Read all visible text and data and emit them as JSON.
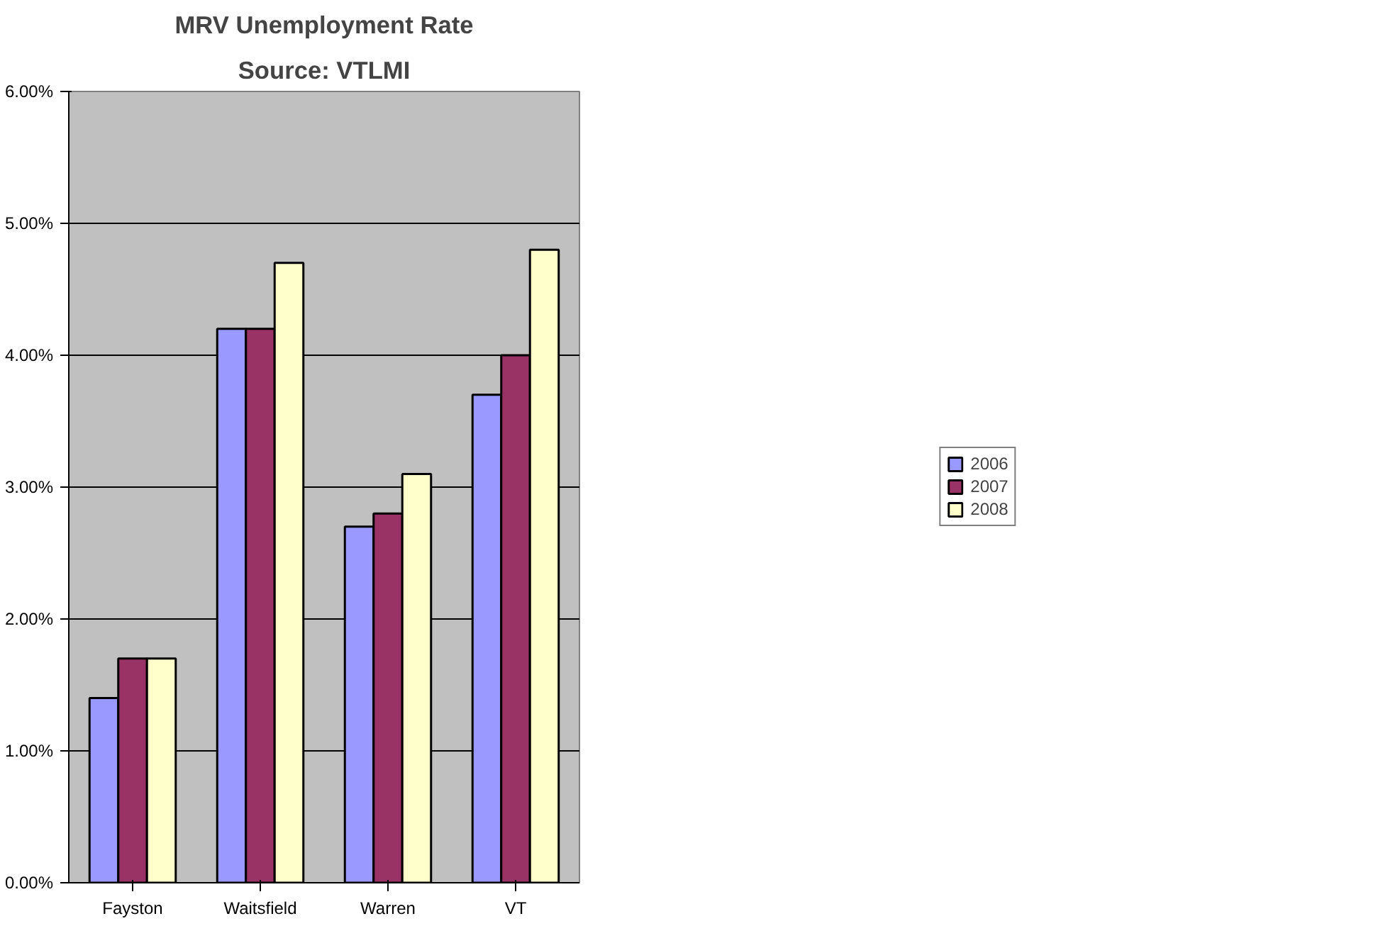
{
  "chart_data": {
    "type": "bar",
    "title": "MRV Unemployment Rate",
    "subtitle": "Source: VTLMI",
    "categories": [
      "Fayston",
      "Waitsfield",
      "Warren",
      "VT"
    ],
    "series": [
      {
        "name": "2006",
        "color": "#9999ff",
        "values": [
          1.4,
          4.2,
          2.7,
          3.7
        ]
      },
      {
        "name": "2007",
        "color": "#993366",
        "values": [
          1.7,
          4.2,
          2.8,
          4.0
        ]
      },
      {
        "name": "2008",
        "color": "#ffffcc",
        "values": [
          1.7,
          4.7,
          3.1,
          4.8
        ]
      }
    ],
    "ylim": [
      0,
      6
    ],
    "yticks": [
      {
        "value": 0,
        "label": "0.00%"
      },
      {
        "value": 1,
        "label": "1.00%"
      },
      {
        "value": 2,
        "label": "2.00%"
      },
      {
        "value": 3,
        "label": "3.00%"
      },
      {
        "value": 4,
        "label": "4.00%"
      },
      {
        "value": 5,
        "label": "5.00%"
      },
      {
        "value": 6,
        "label": "6.00%"
      }
    ],
    "grid": "y",
    "legend": "right"
  }
}
